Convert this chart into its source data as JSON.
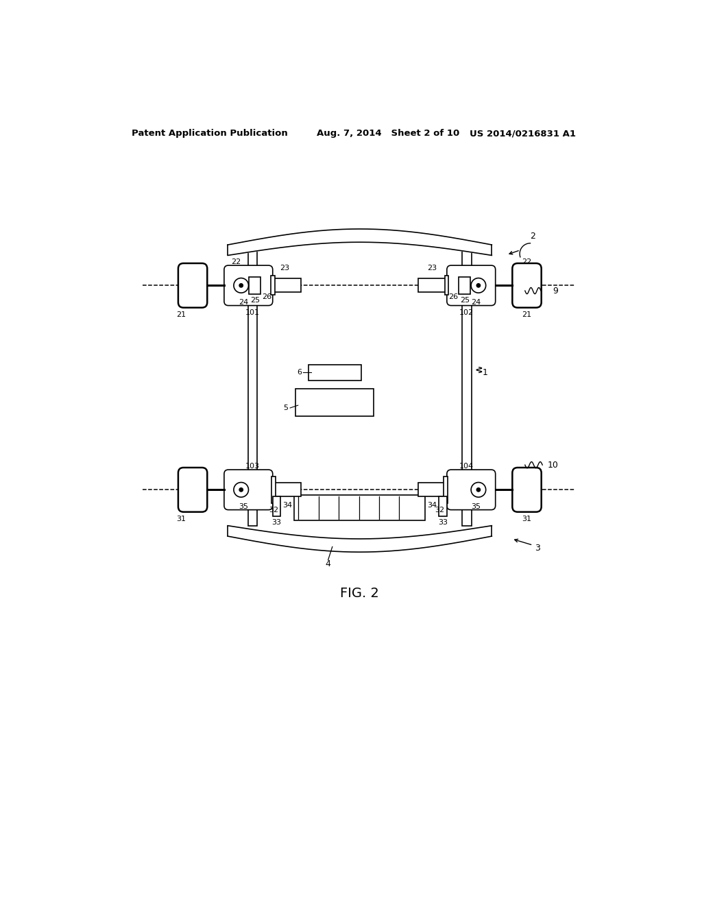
{
  "bg_color": "#ffffff",
  "header_left": "Patent Application Publication",
  "header_mid": "Aug. 7, 2014   Sheet 2 of 10",
  "header_right": "US 2014/0216831 A1",
  "fig_label": "FIG. 2"
}
